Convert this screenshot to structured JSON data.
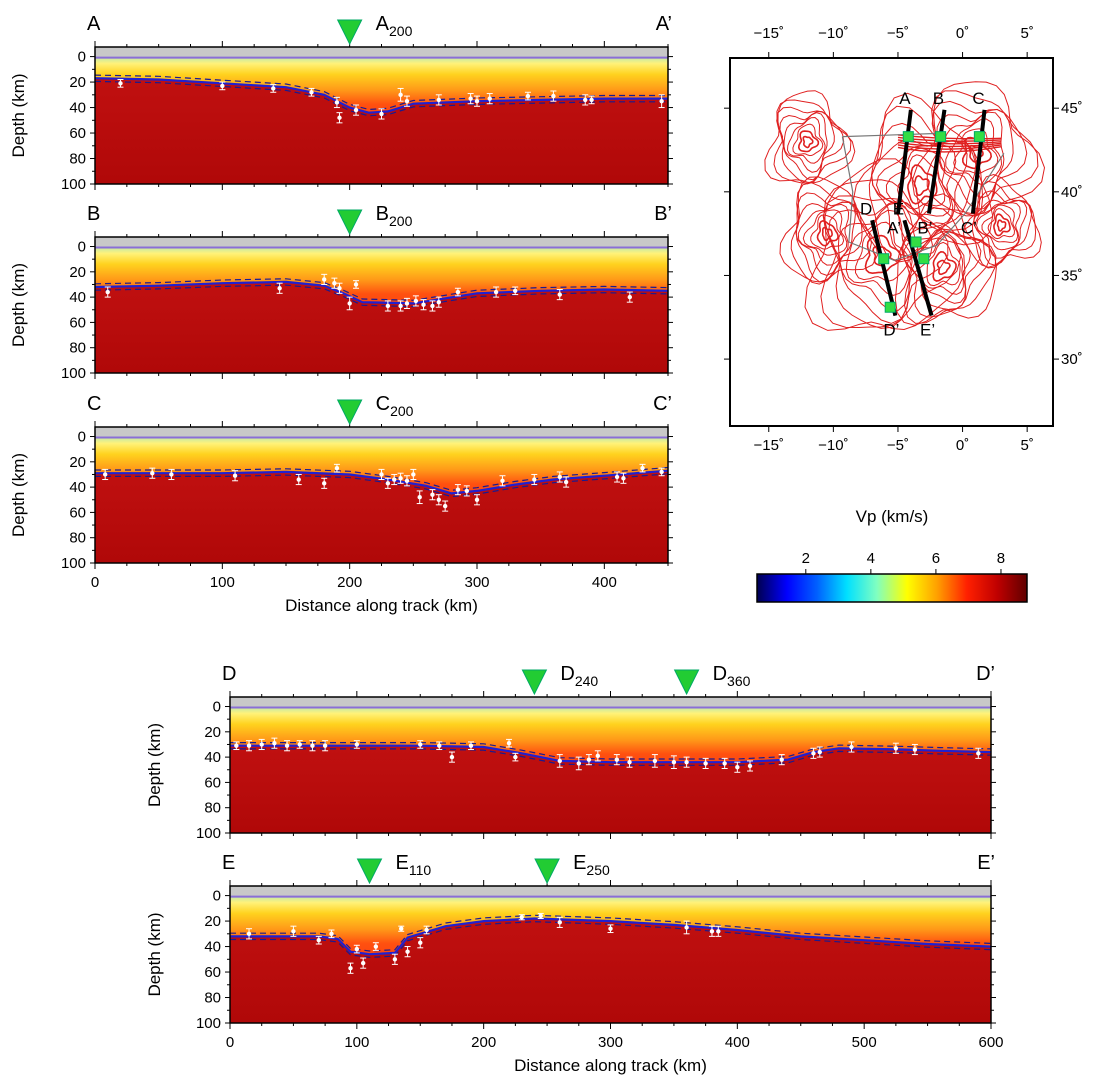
{
  "panels": [
    {
      "id": "A",
      "start_label": "A",
      "end_label": "A’",
      "markers": [
        {
          "letter": "A",
          "sub": "200",
          "km": 200
        }
      ],
      "xmax": 450,
      "xticks": [
        0,
        100,
        200,
        300,
        400
      ],
      "show_xtick_labels": false,
      "show_xlabel": false,
      "moho_km": [
        [
          0,
          17
        ],
        [
          50,
          18
        ],
        [
          100,
          21
        ],
        [
          150,
          24
        ],
        [
          180,
          30
        ],
        [
          200,
          40
        ],
        [
          215,
          44
        ],
        [
          230,
          43
        ],
        [
          250,
          37
        ],
        [
          300,
          35
        ],
        [
          350,
          34
        ],
        [
          400,
          33
        ],
        [
          450,
          33
        ]
      ],
      "stations": [
        [
          20,
          21,
          3
        ],
        [
          100,
          23,
          3
        ],
        [
          140,
          25,
          3
        ],
        [
          170,
          28,
          3
        ],
        [
          190,
          36,
          4
        ],
        [
          192,
          48,
          4
        ],
        [
          205,
          42,
          4
        ],
        [
          225,
          45,
          4
        ],
        [
          240,
          30,
          5
        ],
        [
          245,
          35,
          4
        ],
        [
          270,
          34,
          4
        ],
        [
          295,
          33,
          4
        ],
        [
          300,
          35,
          4
        ],
        [
          310,
          33,
          4
        ],
        [
          340,
          31,
          3
        ],
        [
          360,
          31,
          4
        ],
        [
          385,
          34,
          4
        ],
        [
          390,
          34,
          3
        ],
        [
          445,
          35,
          5
        ]
      ]
    },
    {
      "id": "B",
      "start_label": "B",
      "end_label": "B’",
      "markers": [
        {
          "letter": "B",
          "sub": "200",
          "km": 200
        }
      ],
      "xmax": 450,
      "xticks": [
        0,
        100,
        200,
        300,
        400
      ],
      "show_xtick_labels": false,
      "show_xlabel": false,
      "moho_km": [
        [
          0,
          32
        ],
        [
          50,
          31
        ],
        [
          100,
          29
        ],
        [
          150,
          28
        ],
        [
          180,
          31
        ],
        [
          195,
          37
        ],
        [
          210,
          44
        ],
        [
          250,
          45
        ],
        [
          300,
          37
        ],
        [
          350,
          35
        ],
        [
          400,
          34
        ],
        [
          450,
          35
        ]
      ],
      "stations": [
        [
          10,
          36,
          4
        ],
        [
          145,
          33,
          4
        ],
        [
          180,
          26,
          4
        ],
        [
          188,
          29,
          4
        ],
        [
          192,
          33,
          4
        ],
        [
          200,
          45,
          5
        ],
        [
          205,
          30,
          3
        ],
        [
          230,
          47,
          4
        ],
        [
          240,
          47,
          4
        ],
        [
          245,
          45,
          4
        ],
        [
          252,
          43,
          4
        ],
        [
          258,
          46,
          4
        ],
        [
          265,
          47,
          4
        ],
        [
          270,
          44,
          4
        ],
        [
          285,
          36,
          3
        ],
        [
          315,
          36,
          4
        ],
        [
          330,
          35,
          3
        ],
        [
          365,
          38,
          4
        ],
        [
          420,
          40,
          4
        ]
      ]
    },
    {
      "id": "C",
      "start_label": "C",
      "end_label": "C’",
      "markers": [
        {
          "letter": "C",
          "sub": "200",
          "km": 200
        }
      ],
      "xmax": 450,
      "xticks": [
        0,
        100,
        200,
        300,
        400
      ],
      "show_xtick_labels": true,
      "show_xlabel": true,
      "xlabel": "Distance along track (km)",
      "moho_km": [
        [
          0,
          29
        ],
        [
          50,
          29
        ],
        [
          100,
          29
        ],
        [
          150,
          28
        ],
        [
          200,
          30
        ],
        [
          230,
          34
        ],
        [
          260,
          39
        ],
        [
          280,
          45
        ],
        [
          300,
          43
        ],
        [
          330,
          38
        ],
        [
          360,
          34
        ],
        [
          400,
          31
        ],
        [
          450,
          27
        ]
      ],
      "stations": [
        [
          8,
          30,
          4
        ],
        [
          45,
          29,
          4
        ],
        [
          60,
          30,
          4
        ],
        [
          110,
          31,
          4
        ],
        [
          160,
          34,
          4
        ],
        [
          180,
          37,
          4
        ],
        [
          190,
          25,
          3
        ],
        [
          225,
          30,
          4
        ],
        [
          230,
          37,
          4
        ],
        [
          235,
          34,
          4
        ],
        [
          240,
          33,
          4
        ],
        [
          245,
          35,
          4
        ],
        [
          250,
          30,
          4
        ],
        [
          255,
          48,
          5
        ],
        [
          265,
          46,
          4
        ],
        [
          270,
          50,
          4
        ],
        [
          275,
          55,
          4
        ],
        [
          285,
          42,
          4
        ],
        [
          292,
          43,
          4
        ],
        [
          300,
          50,
          4
        ],
        [
          320,
          35,
          4
        ],
        [
          345,
          34,
          4
        ],
        [
          365,
          32,
          4
        ],
        [
          370,
          36,
          4
        ],
        [
          410,
          32,
          4
        ],
        [
          415,
          33,
          4
        ],
        [
          430,
          25,
          3
        ],
        [
          445,
          28,
          3
        ]
      ]
    },
    {
      "id": "D",
      "start_label": "D",
      "end_label": "D’",
      "markers": [
        {
          "letter": "D",
          "sub": "240",
          "km": 240
        },
        {
          "letter": "D",
          "sub": "360",
          "km": 360
        }
      ],
      "xmax": 600,
      "xticks": [
        0,
        100,
        200,
        300,
        400,
        500,
        600
      ],
      "show_xtick_labels": false,
      "show_xlabel": false,
      "moho_km": [
        [
          0,
          31
        ],
        [
          50,
          31
        ],
        [
          100,
          31
        ],
        [
          150,
          31
        ],
        [
          200,
          32
        ],
        [
          230,
          37
        ],
        [
          260,
          43
        ],
        [
          300,
          44
        ],
        [
          350,
          44
        ],
        [
          400,
          44
        ],
        [
          440,
          42
        ],
        [
          460,
          36
        ],
        [
          480,
          33
        ],
        [
          530,
          34
        ],
        [
          560,
          35
        ],
        [
          600,
          36
        ]
      ],
      "stations": [
        [
          5,
          31,
          3
        ],
        [
          15,
          31,
          4
        ],
        [
          25,
          30,
          4
        ],
        [
          35,
          29,
          4
        ],
        [
          45,
          31,
          4
        ],
        [
          55,
          30,
          3
        ],
        [
          65,
          31,
          4
        ],
        [
          75,
          31,
          4
        ],
        [
          100,
          30,
          3
        ],
        [
          150,
          30,
          3
        ],
        [
          165,
          31,
          3
        ],
        [
          175,
          40,
          4
        ],
        [
          190,
          31,
          3
        ],
        [
          220,
          29,
          3
        ],
        [
          225,
          40,
          3
        ],
        [
          260,
          43,
          5
        ],
        [
          275,
          45,
          5
        ],
        [
          283,
          42,
          4
        ],
        [
          290,
          39,
          4
        ],
        [
          305,
          42,
          4
        ],
        [
          315,
          44,
          4
        ],
        [
          335,
          43,
          5
        ],
        [
          350,
          44,
          5
        ],
        [
          360,
          44,
          4
        ],
        [
          375,
          45,
          4
        ],
        [
          390,
          45,
          4
        ],
        [
          400,
          48,
          4
        ],
        [
          410,
          47,
          4
        ],
        [
          435,
          42,
          4
        ],
        [
          460,
          37,
          4
        ],
        [
          465,
          36,
          4
        ],
        [
          490,
          32,
          4
        ],
        [
          525,
          33,
          4
        ],
        [
          540,
          34,
          4
        ],
        [
          590,
          37,
          4
        ]
      ]
    },
    {
      "id": "E",
      "start_label": "E",
      "end_label": "E’",
      "markers": [
        {
          "letter": "E",
          "sub": "110",
          "km": 110
        },
        {
          "letter": "E",
          "sub": "250",
          "km": 250
        }
      ],
      "xmax": 600,
      "xticks": [
        0,
        100,
        200,
        300,
        400,
        500,
        600
      ],
      "show_xtick_labels": true,
      "show_xlabel": true,
      "xlabel": "Distance along track (km)",
      "moho_km": [
        [
          0,
          32
        ],
        [
          40,
          32
        ],
        [
          70,
          32
        ],
        [
          85,
          34
        ],
        [
          95,
          44
        ],
        [
          110,
          46
        ],
        [
          130,
          45
        ],
        [
          140,
          33
        ],
        [
          170,
          24
        ],
        [
          200,
          20
        ],
        [
          240,
          18
        ],
        [
          300,
          20
        ],
        [
          350,
          23
        ],
        [
          400,
          27
        ],
        [
          450,
          32
        ],
        [
          500,
          35
        ],
        [
          550,
          38
        ],
        [
          600,
          40
        ]
      ],
      "stations": [
        [
          15,
          30,
          4
        ],
        [
          50,
          28,
          4
        ],
        [
          70,
          35,
          3
        ],
        [
          80,
          30,
          3
        ],
        [
          95,
          57,
          4
        ],
        [
          100,
          42,
          3
        ],
        [
          105,
          53,
          4
        ],
        [
          115,
          40,
          3
        ],
        [
          130,
          50,
          4
        ],
        [
          135,
          26,
          2
        ],
        [
          140,
          44,
          4
        ],
        [
          150,
          37,
          4
        ],
        [
          155,
          27,
          3
        ],
        [
          230,
          17,
          2
        ],
        [
          245,
          16,
          2
        ],
        [
          260,
          21,
          4
        ],
        [
          300,
          26,
          3
        ],
        [
          360,
          25,
          5
        ],
        [
          380,
          28,
          4
        ],
        [
          385,
          28,
          4
        ]
      ]
    }
  ],
  "ylabel": "Depth (km)",
  "yticks": [
    0,
    20,
    40,
    60,
    80,
    100
  ],
  "map": {
    "lon_range": [
      -18,
      7
    ],
    "lat_range": [
      26,
      48
    ],
    "lon_ticks": [
      -15,
      -10,
      -5,
      0,
      5
    ],
    "lat_ticks": [
      30,
      35,
      40,
      45
    ],
    "lon_tick_labels": [
      "−15˚",
      "−10˚",
      "−5˚",
      "0˚",
      "5˚"
    ],
    "lat_tick_labels": [
      "30˚",
      "35˚",
      "40˚",
      "45˚"
    ],
    "contour_color": "#e02020",
    "marker_color": "#33dd44",
    "profiles": [
      {
        "start": "A",
        "end": "A’",
        "p0": [
          -4.0,
          44.9
        ],
        "p1": [
          -5.0,
          38.7
        ]
      },
      {
        "start": "B",
        "end": "B’",
        "p0": [
          -1.4,
          44.9
        ],
        "p1": [
          -2.6,
          38.7
        ]
      },
      {
        "start": "C",
        "end": "C’",
        "p0": [
          1.7,
          44.9
        ],
        "p1": [
          0.8,
          38.7
        ]
      },
      {
        "start": "D",
        "end": "D’",
        "p0": [
          -7.0,
          38.3
        ],
        "p1": [
          -5.2,
          32.6
        ]
      },
      {
        "start": "E",
        "end": "E’",
        "p0": [
          -4.5,
          38.3
        ],
        "p1": [
          -2.4,
          32.6
        ]
      }
    ],
    "squares": [
      [
        -4.2,
        43.3
      ],
      [
        -1.7,
        43.3
      ],
      [
        1.3,
        43.3
      ],
      [
        -6.1,
        36.0
      ],
      [
        -5.6,
        33.1
      ],
      [
        -3.6,
        37.0
      ],
      [
        -3.0,
        36.0
      ]
    ]
  },
  "colorbar": {
    "title": "Vp (km/s)",
    "ticks": [
      2,
      4,
      6,
      8
    ],
    "range": [
      0.5,
      8.8
    ],
    "colors": [
      "#000050",
      "#0000ff",
      "#0060ff",
      "#00e0ff",
      "#80ffc0",
      "#ffff00",
      "#ffa000",
      "#ff2000",
      "#c00000",
      "#600000"
    ]
  }
}
